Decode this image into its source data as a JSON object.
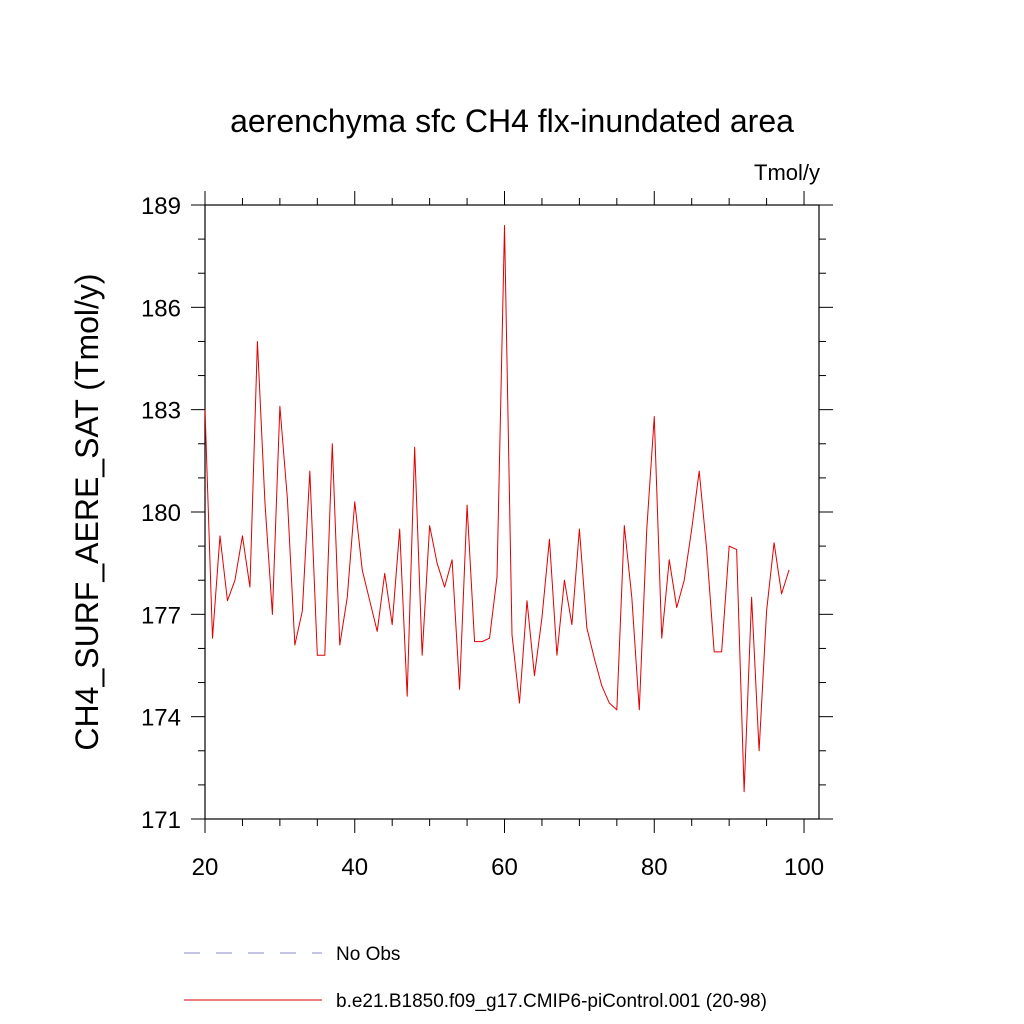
{
  "chart_data": {
    "type": "line",
    "title": "aerenchyma sfc CH4 flx-inundated area",
    "units": "Tmol/y",
    "ylabel": "CH4_SURF_AERE_SAT  (Tmol/y)",
    "xlabel": "",
    "xlim": [
      20,
      102
    ],
    "ylim": [
      171,
      189
    ],
    "xticks": [
      20,
      40,
      60,
      80,
      100
    ],
    "yticks": [
      171,
      174,
      177,
      180,
      183,
      186,
      189
    ],
    "grid": false,
    "legend_position": "bottom",
    "series": [
      {
        "name": "b.e21.B1850.f09_g17.CMIP6-piControl.001 (20-98)",
        "color": "#e00000",
        "style": "solid",
        "x": [
          20,
          21,
          22,
          23,
          24,
          25,
          26,
          27,
          28,
          29,
          30,
          31,
          32,
          33,
          34,
          35,
          36,
          37,
          38,
          39,
          40,
          41,
          42,
          43,
          44,
          45,
          46,
          47,
          48,
          49,
          50,
          51,
          52,
          53,
          54,
          55,
          56,
          57,
          58,
          59,
          60,
          61,
          62,
          63,
          64,
          65,
          66,
          67,
          68,
          69,
          70,
          71,
          72,
          73,
          74,
          75,
          76,
          77,
          78,
          79,
          80,
          81,
          82,
          83,
          84,
          85,
          86,
          87,
          88,
          89,
          90,
          91,
          92,
          93,
          94,
          95,
          96,
          97,
          98
        ],
        "y": [
          183.0,
          176.3,
          179.3,
          177.4,
          178.0,
          179.3,
          177.8,
          185.0,
          180.3,
          177.0,
          183.1,
          180.4,
          176.1,
          177.1,
          181.2,
          175.8,
          175.8,
          182.0,
          176.1,
          177.5,
          180.3,
          178.3,
          177.4,
          176.5,
          178.2,
          176.7,
          179.5,
          174.6,
          181.9,
          175.8,
          179.6,
          178.5,
          177.8,
          178.6,
          174.8,
          180.2,
          176.2,
          176.2,
          176.3,
          178.1,
          188.4,
          176.4,
          174.4,
          177.4,
          175.2,
          176.9,
          179.2,
          175.8,
          178.0,
          176.7,
          179.5,
          176.6,
          175.7,
          174.9,
          174.4,
          174.2,
          179.6,
          177.5,
          174.2,
          179.5,
          182.8,
          176.3,
          178.6,
          177.2,
          178.0,
          179.5,
          181.2,
          178.9,
          175.9,
          175.9,
          179.0,
          178.9,
          171.8,
          177.5,
          173.0,
          177.1,
          179.1,
          177.6,
          178.3
        ]
      },
      {
        "name": "No Obs",
        "color": "#8888cc",
        "style": "dashed",
        "x": [],
        "y": []
      }
    ]
  }
}
